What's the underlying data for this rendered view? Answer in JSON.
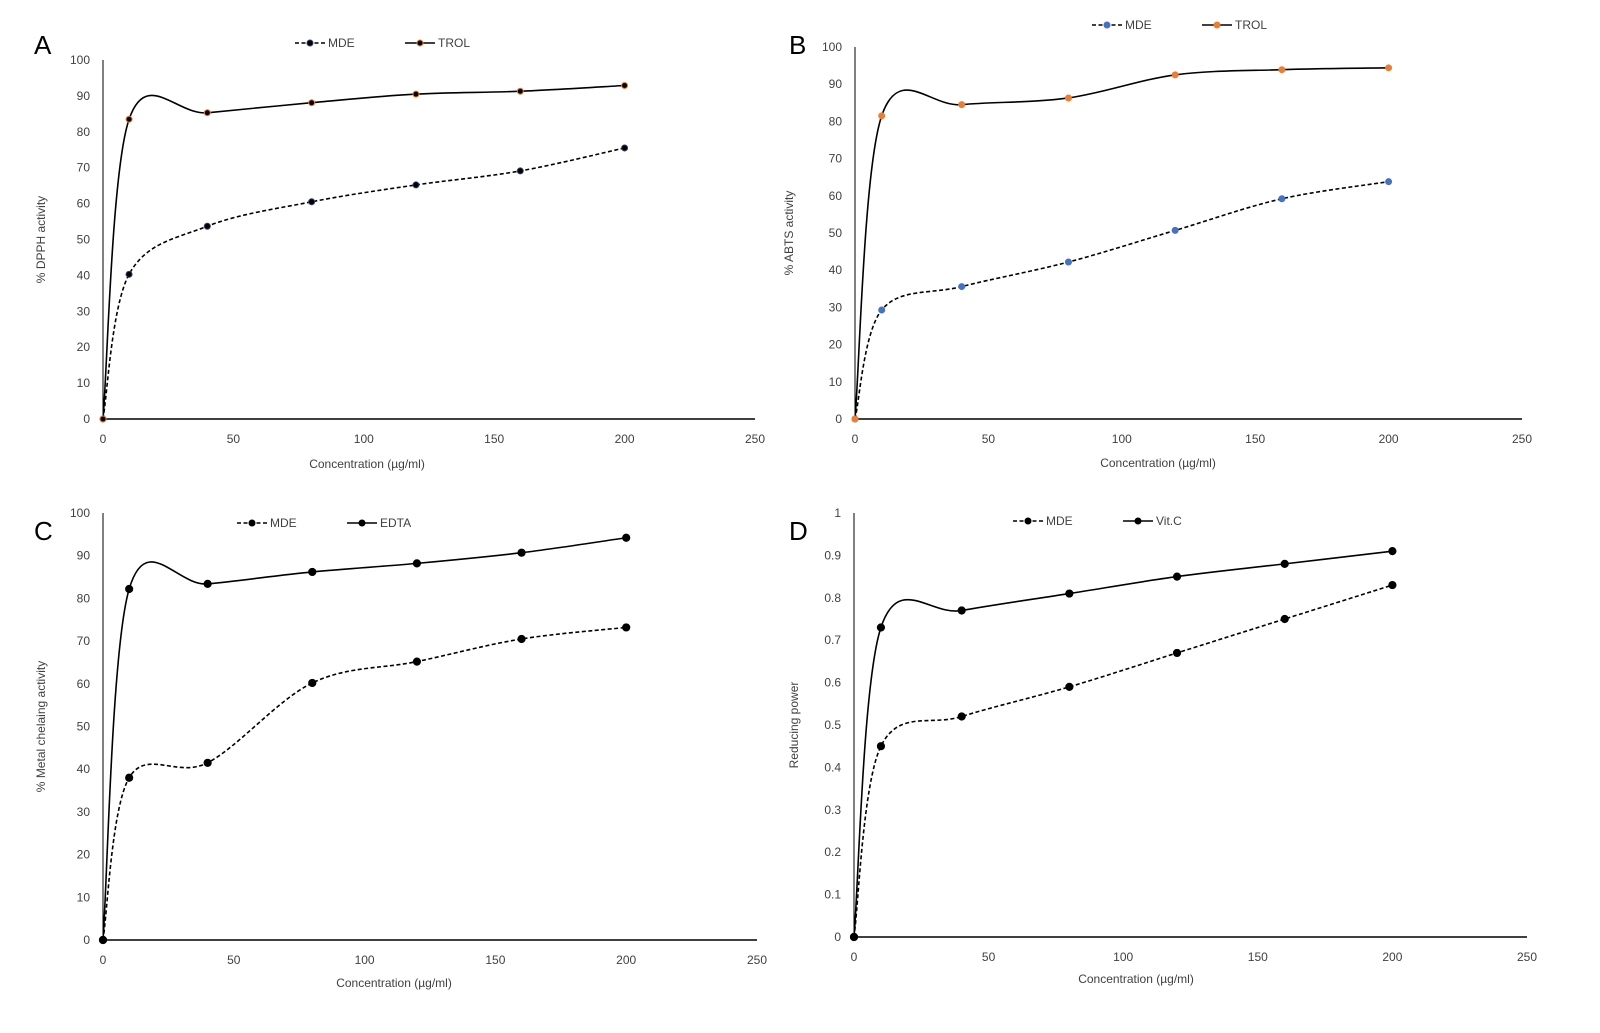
{
  "chart_data": [
    {
      "panel": "A",
      "type": "line",
      "xlabel": "Concentration (µg/ml)",
      "ylabel": "% DPPH activity",
      "xlim": [
        0,
        250
      ],
      "ylim": [
        0,
        100
      ],
      "xticks": [
        "0",
        "50",
        "100",
        "150",
        "200",
        "250"
      ],
      "yticks": [
        "0",
        "10",
        "20",
        "30",
        "40",
        "50",
        "60",
        "70",
        "80",
        "90",
        "100"
      ],
      "smooth": true,
      "grid": false,
      "legend_position": "top",
      "x": [
        0,
        10,
        40,
        80,
        120,
        160,
        200
      ],
      "series": [
        {
          "name": "MDE",
          "style": "dashed",
          "marker_color": "#2F3E6B",
          "values": [
            0,
            40.3,
            53.7,
            60.5,
            65.2,
            69.1,
            75.5
          ]
        },
        {
          "name": "TROL",
          "style": "solid",
          "marker_color": "#ED7D31",
          "values": [
            0,
            83.5,
            85.3,
            88.1,
            90.5,
            91.3,
            92.9
          ]
        }
      ]
    },
    {
      "panel": "B",
      "type": "line",
      "xlabel": "Concentration (µg/ml)",
      "ylabel": "% ABTS  activity",
      "xlim": [
        0,
        250
      ],
      "ylim": [
        0,
        100
      ],
      "xticks": [
        "0",
        "50",
        "100",
        "150",
        "200",
        "250"
      ],
      "yticks": [
        "0",
        "10",
        "20",
        "30",
        "40",
        "50",
        "60",
        "70",
        "80",
        "90",
        "100"
      ],
      "smooth": true,
      "grid": false,
      "legend_position": "top",
      "x": [
        0,
        10,
        40,
        80,
        120,
        160,
        200
      ],
      "series": [
        {
          "name": "MDE",
          "style": "dashed",
          "marker_color": "#4472C4",
          "values": [
            0,
            29.3,
            35.6,
            42.2,
            50.7,
            59.2,
            63.8
          ]
        },
        {
          "name": "TROL",
          "style": "solid",
          "marker_color": "#ED7D31",
          "values": [
            0,
            81.5,
            84.5,
            86.3,
            92.5,
            93.9,
            94.4
          ]
        }
      ]
    },
    {
      "panel": "C",
      "type": "line",
      "xlabel": "Concentration (µg/ml)",
      "ylabel": "% Metal chelaing activity",
      "xlim": [
        0,
        250
      ],
      "ylim": [
        0,
        100
      ],
      "xticks": [
        "0",
        "50",
        "100",
        "150",
        "200",
        "250"
      ],
      "yticks": [
        "0",
        "10",
        "20",
        "30",
        "40",
        "50",
        "60",
        "70",
        "80",
        "90",
        "100"
      ],
      "smooth": true,
      "grid": false,
      "legend_position": "top",
      "x": [
        0,
        10,
        40,
        80,
        120,
        160,
        200
      ],
      "series": [
        {
          "name": "MDE",
          "style": "dashed",
          "marker_color": "#000000",
          "values": [
            0,
            38.0,
            41.5,
            60.2,
            65.2,
            70.5,
            73.2
          ]
        },
        {
          "name": "EDTA",
          "style": "solid",
          "marker_color": "#000000",
          "values": [
            0,
            82.2,
            83.4,
            86.2,
            88.2,
            90.7,
            94.2
          ]
        }
      ]
    },
    {
      "panel": "D",
      "type": "line",
      "xlabel": "Concentration (µg/ml)",
      "ylabel": "Reducing power",
      "xlim": [
        0,
        250
      ],
      "ylim": [
        0,
        1
      ],
      "xticks": [
        "0",
        "50",
        "100",
        "150",
        "200",
        "250"
      ],
      "yticks": [
        "0",
        "0.1",
        "0.2",
        "0.3",
        "0.4",
        "0.5",
        "0.6",
        "0.7",
        "0.8",
        "0.9",
        "1"
      ],
      "smooth": true,
      "grid": false,
      "legend_position": "top",
      "x": [
        0,
        10,
        40,
        80,
        120,
        160,
        200
      ],
      "series": [
        {
          "name": "MDE",
          "style": "dashed",
          "marker_color": "#000000",
          "values": [
            0,
            0.45,
            0.52,
            0.59,
            0.67,
            0.75,
            0.83
          ]
        },
        {
          "name": "Vit.C",
          "style": "solid",
          "marker_color": "#000000",
          "values": [
            0,
            0.73,
            0.77,
            0.81,
            0.85,
            0.88,
            0.91
          ]
        }
      ]
    }
  ]
}
